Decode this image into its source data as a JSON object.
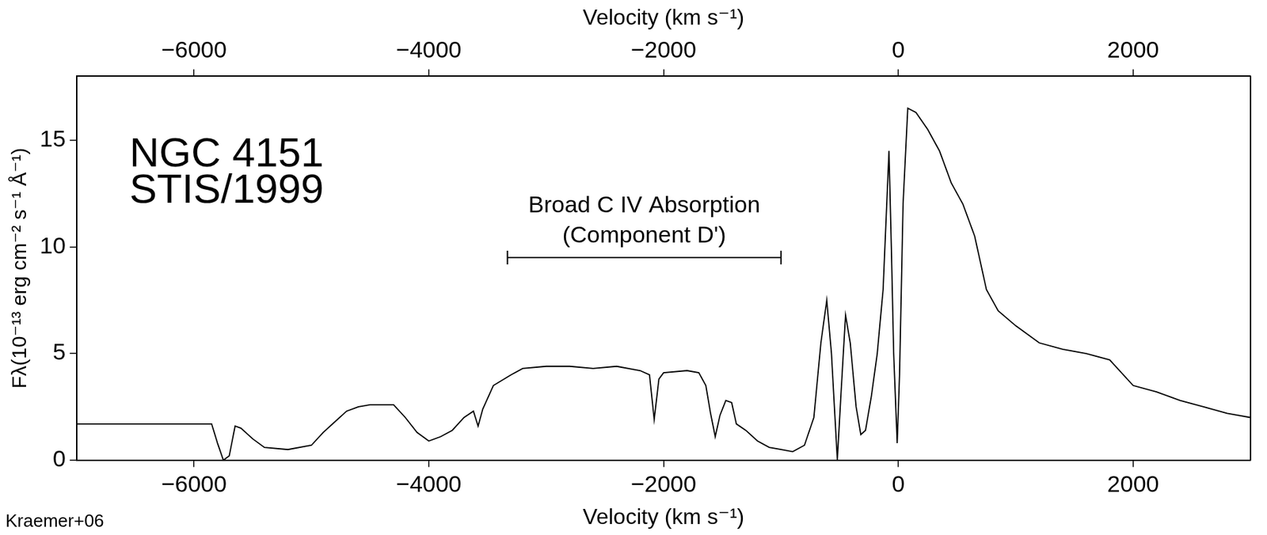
{
  "chart_data": {
    "type": "line",
    "annotations": [
      {
        "text": "NGC 4151",
        "x": -6550,
        "y": 14.3
      },
      {
        "text": "STIS/1999",
        "x": -6550,
        "y": 12.6
      }
    ],
    "bracket": {
      "x_range": [
        -3330,
        -1000
      ],
      "y": 9.5,
      "labels": [
        "Broad C IV Absorption",
        "(Component D')"
      ]
    },
    "source": "Kraemer+06",
    "xlabel": "Velocity (km s⁻¹)",
    "ylabel": "Fλ(10⁻¹³ erg cm⁻² s⁻¹ Å⁻¹)",
    "xlim": [
      -7000,
      3000
    ],
    "xticks": [
      {
        "value": -6000,
        "label": "−6000"
      },
      {
        "value": -4000,
        "label": "−4000"
      },
      {
        "value": -2000,
        "label": "−2000"
      },
      0,
      2000
    ],
    "ylim": [
      0,
      18
    ],
    "yticks": [
      0,
      5,
      10,
      15
    ],
    "grid": false,
    "color": "#000000",
    "x": [
      -7000,
      -6500,
      -6000,
      -5850,
      -5800,
      -5750,
      -5700,
      -5650,
      -5600,
      -5500,
      -5400,
      -5200,
      -5000,
      -4900,
      -4800,
      -4700,
      -4600,
      -4500,
      -4400,
      -4300,
      -4200,
      -4100,
      -4000,
      -3900,
      -3800,
      -3700,
      -3620,
      -3580,
      -3540,
      -3450,
      -3300,
      -3200,
      -3000,
      -2800,
      -2600,
      -2400,
      -2200,
      -2120,
      -2080,
      -2040,
      -2000,
      -1800,
      -1700,
      -1640,
      -1600,
      -1560,
      -1520,
      -1470,
      -1420,
      -1380,
      -1300,
      -1200,
      -1100,
      -1000,
      -900,
      -800,
      -720,
      -660,
      -610,
      -570,
      -540,
      -520,
      -490,
      -450,
      -410,
      -360,
      -320,
      -280,
      -230,
      -180,
      -130,
      -80,
      -60,
      -40,
      -10,
      10,
      40,
      80,
      150,
      250,
      350,
      450,
      550,
      650,
      750,
      850,
      1000,
      1200,
      1400,
      1600,
      1800,
      2000,
      2200,
      2400,
      2600,
      2800,
      3000
    ],
    "values": [
      1.7,
      1.7,
      1.7,
      1.7,
      0.8,
      0.0,
      0.2,
      1.6,
      1.5,
      1.0,
      0.6,
      0.5,
      0.7,
      1.3,
      1.8,
      2.3,
      2.5,
      2.6,
      2.6,
      2.6,
      2.0,
      1.3,
      0.9,
      1.1,
      1.4,
      2.0,
      2.3,
      1.6,
      2.4,
      3.5,
      4.0,
      4.3,
      4.4,
      4.4,
      4.3,
      4.4,
      4.2,
      4.0,
      1.9,
      3.8,
      4.1,
      4.2,
      4.1,
      3.5,
      2.2,
      1.1,
      2.1,
      2.8,
      2.7,
      1.7,
      1.4,
      0.9,
      0.6,
      0.5,
      0.4,
      0.7,
      2.0,
      5.5,
      7.5,
      5.0,
      2.0,
      0.0,
      3.0,
      6.8,
      5.5,
      2.5,
      1.2,
      1.4,
      3.0,
      5.0,
      8.0,
      14.5,
      10.0,
      5.0,
      0.8,
      4.0,
      12.0,
      16.5,
      16.3,
      15.5,
      14.5,
      13.0,
      12.0,
      10.5,
      8.0,
      7.0,
      6.3,
      5.5,
      5.2,
      5.0,
      4.7,
      3.5,
      3.2,
      2.8,
      2.5,
      2.2,
      2.0
    ]
  }
}
